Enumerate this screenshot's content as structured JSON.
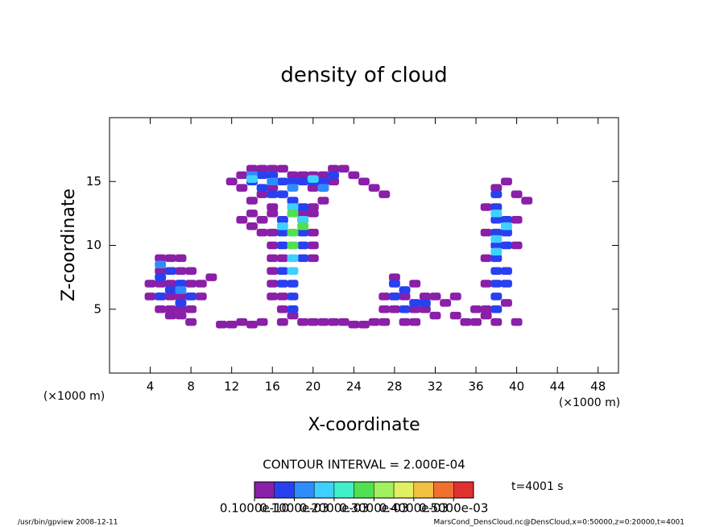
{
  "chart_data": {
    "type": "contour",
    "title": "density of cloud",
    "xlabel": "X-coordinate",
    "ylabel": "Z-coordinate",
    "x_unit": "(×1000 m)",
    "y_unit": "(×1000 m)",
    "xlim": [
      0,
      50
    ],
    "ylim": [
      0,
      20
    ],
    "xticks": [
      4,
      8,
      12,
      16,
      20,
      24,
      28,
      32,
      36,
      40,
      44,
      48
    ],
    "yticks": [
      5,
      10,
      15
    ],
    "x": [
      4,
      4,
      5,
      5,
      5,
      5,
      5,
      6,
      6,
      6,
      6,
      6,
      6,
      7,
      7,
      7,
      7,
      7,
      7,
      8,
      8,
      8,
      8,
      8,
      9,
      9,
      10,
      12,
      13,
      13,
      14,
      15,
      16,
      17,
      18,
      19,
      20,
      21,
      22,
      23,
      24,
      25,
      26,
      27,
      14,
      15,
      16,
      20,
      21,
      22,
      13,
      14,
      15,
      15,
      16,
      14,
      16,
      20,
      21,
      19,
      16,
      16,
      16,
      16,
      16,
      17,
      17,
      17,
      20,
      20,
      20,
      18,
      17,
      19,
      20,
      16,
      11,
      12,
      13,
      15,
      19,
      20,
      21,
      22,
      23,
      24,
      25,
      14,
      26,
      27,
      27,
      28,
      28,
      28,
      29,
      29,
      30,
      30,
      31,
      31,
      32,
      33,
      34,
      30,
      32,
      27,
      34,
      35,
      36,
      37,
      38,
      40,
      36,
      37,
      37,
      37,
      37,
      38,
      39,
      40,
      41,
      37,
      40,
      40,
      39,
      5,
      6,
      6,
      7,
      7,
      8,
      5,
      14,
      15,
      16,
      17,
      18,
      19,
      20,
      21,
      22,
      15,
      16,
      28,
      29,
      29,
      30,
      31,
      28,
      38,
      38,
      38,
      38,
      38,
      38,
      38,
      38,
      38,
      39,
      39,
      39,
      39,
      38,
      39,
      17,
      17,
      17,
      17,
      17,
      18,
      18,
      18,
      19,
      19,
      19,
      19,
      18,
      17,
      5,
      7,
      14,
      16,
      18,
      21,
      18,
      18,
      19,
      18,
      17,
      38,
      38,
      39,
      38,
      18,
      18,
      19,
      18,
      14,
      20
    ],
    "z": [
      6,
      7,
      5,
      6,
      7,
      8,
      9,
      4.5,
      5,
      6,
      7,
      8,
      9,
      4.5,
      5,
      6,
      7,
      8,
      9,
      4,
      5,
      6,
      7,
      8,
      6,
      7,
      7.5,
      15,
      14.5,
      15.5,
      16,
      16,
      16,
      16,
      15.5,
      15.5,
      15.5,
      15.5,
      16,
      16,
      15.5,
      15,
      14.5,
      14,
      13.5,
      14,
      14.5,
      14.5,
      14.5,
      15,
      12,
      12.5,
      12,
      11,
      12.5,
      11.5,
      11,
      13,
      13.5,
      12,
      6,
      7,
      8,
      9,
      10,
      5,
      6,
      9,
      9,
      10,
      11,
      4.5,
      4,
      12.5,
      12.5,
      13,
      3.8,
      3.8,
      4,
      4,
      4,
      4,
      4,
      4,
      4,
      3.8,
      3.8,
      3.8,
      4,
      4,
      5,
      5,
      6,
      7.5,
      4,
      6,
      4,
      5,
      5,
      6,
      6,
      5.5,
      6,
      7,
      4.5,
      6,
      4.5,
      4,
      4,
      4.5,
      4,
      4,
      5,
      5,
      7,
      9,
      11,
      14.5,
      15,
      14,
      13.5,
      13,
      10,
      12,
      5.5,
      6,
      6.5,
      8,
      5.5,
      7,
      6,
      7.5,
      15,
      15.5,
      15.5,
      15,
      15,
      15,
      15,
      15,
      15.5,
      14.5,
      14,
      6,
      5,
      6.5,
      5.5,
      5.5,
      7,
      5,
      6,
      7,
      8,
      9,
      10,
      11,
      12,
      13,
      12,
      11,
      8,
      7,
      14,
      10,
      7,
      8,
      10,
      11,
      12,
      6,
      7,
      5,
      9,
      10,
      11,
      13,
      13.5,
      14,
      8.5,
      6.5,
      15.5,
      15,
      14.5,
      14.5,
      8,
      9,
      12,
      13,
      11.5,
      10.5,
      12.5,
      11.5,
      9.5,
      10,
      11,
      11.5,
      12.5,
      15.2,
      15.2
    ],
    "values": [
      3e-05,
      3e-05,
      3e-05,
      3e-05,
      3e-05,
      3e-05,
      3e-05,
      3e-05,
      3e-05,
      3e-05,
      3e-05,
      3e-05,
      3e-05,
      3e-05,
      3e-05,
      3e-05,
      3e-05,
      3e-05,
      3e-05,
      3e-05,
      3e-05,
      3e-05,
      3e-05,
      3e-05,
      3e-05,
      3e-05,
      3e-05,
      3e-05,
      3e-05,
      3e-05,
      3e-05,
      3e-05,
      3e-05,
      3e-05,
      3e-05,
      3e-05,
      3e-05,
      3e-05,
      3e-05,
      3e-05,
      3e-05,
      3e-05,
      3e-05,
      3e-05,
      3e-05,
      3e-05,
      3e-05,
      3e-05,
      3e-05,
      3e-05,
      3e-05,
      3e-05,
      3e-05,
      3e-05,
      3e-05,
      3e-05,
      3e-05,
      3e-05,
      3e-05,
      3e-05,
      3e-05,
      3e-05,
      3e-05,
      3e-05,
      3e-05,
      3e-05,
      3e-05,
      3e-05,
      3e-05,
      3e-05,
      3e-05,
      3e-05,
      3e-05,
      3e-05,
      3e-05,
      3e-05,
      3e-05,
      3e-05,
      3e-05,
      3e-05,
      3e-05,
      3e-05,
      3e-05,
      3e-05,
      3e-05,
      3e-05,
      3e-05,
      3e-05,
      3e-05,
      3e-05,
      3e-05,
      3e-05,
      3e-05,
      3e-05,
      3e-05,
      3e-05,
      3e-05,
      3e-05,
      3e-05,
      3e-05,
      3e-05,
      3e-05,
      3e-05,
      3e-05,
      3e-05,
      3e-05,
      3e-05,
      3e-05,
      3e-05,
      3e-05,
      3e-05,
      3e-05,
      3e-05,
      3e-05,
      3e-05,
      3e-05,
      3e-05,
      3e-05,
      3e-05,
      3e-05,
      3e-05,
      3e-05,
      3e-05,
      3e-05,
      3e-05,
      8e-05,
      8e-05,
      8e-05,
      8e-05,
      8e-05,
      8e-05,
      8e-05,
      8e-05,
      8e-05,
      8e-05,
      8e-05,
      8e-05,
      8e-05,
      8e-05,
      8e-05,
      8e-05,
      8e-05,
      8e-05,
      8e-05,
      8e-05,
      8e-05,
      8e-05,
      8e-05,
      8e-05,
      8e-05,
      8e-05,
      8e-05,
      8e-05,
      8e-05,
      8e-05,
      8e-05,
      8e-05,
      8e-05,
      8e-05,
      8e-05,
      8e-05,
      8e-05,
      8e-05,
      8e-05,
      8e-05,
      8e-05,
      8e-05,
      8e-05,
      8e-05,
      8e-05,
      8e-05,
      8e-05,
      8e-05,
      8e-05,
      8e-05,
      8e-05,
      8e-05,
      8e-05,
      0.00012,
      0.00012,
      0.00012,
      0.00012,
      0.00012,
      0.00012,
      0.00017,
      0.00017,
      0.00017,
      0.00017,
      0.00017,
      0.00017,
      0.00017,
      0.00017,
      0.00017,
      0.00026,
      0.00026,
      0.00026,
      0.00026,
      0.00017,
      0.00017
    ],
    "colorbar": {
      "levels": [
        0,
        5e-05,
        0.0001,
        0.00015,
        0.0002,
        0.00025,
        0.0003,
        0.00035,
        0.0004,
        0.00045,
        0.0005,
        0.00055
      ],
      "colors": [
        "#8a1fa8",
        "#2840f0",
        "#2f8cff",
        "#3fd0ff",
        "#40f0c8",
        "#50e050",
        "#a0f060",
        "#e0f060",
        "#f0c040",
        "#f07030",
        "#e03030"
      ],
      "ticks": [
        {
          "value": 1e-11,
          "label": "0.1000e-10"
        },
        {
          "value": 0.0001,
          "label": "0.1000e-03"
        },
        {
          "value": 0.0002,
          "label": "0.2000e-03"
        },
        {
          "value": 0.0003,
          "label": "0.3000e-03"
        },
        {
          "value": 0.0004,
          "label": "0.4000e-03"
        },
        {
          "value": 0.0005,
          "label": "0.5000e-03"
        }
      ]
    },
    "contour_interval": "CONTOUR INTERVAL = 2.000E-04",
    "time_label": "t=4001 s",
    "footer_left": "/usr/bin/gpview  2008-12-11",
    "footer_right": "MarsCond_DensCloud.nc@DensCloud,x=0:50000,z=0:20000,t=4001"
  }
}
